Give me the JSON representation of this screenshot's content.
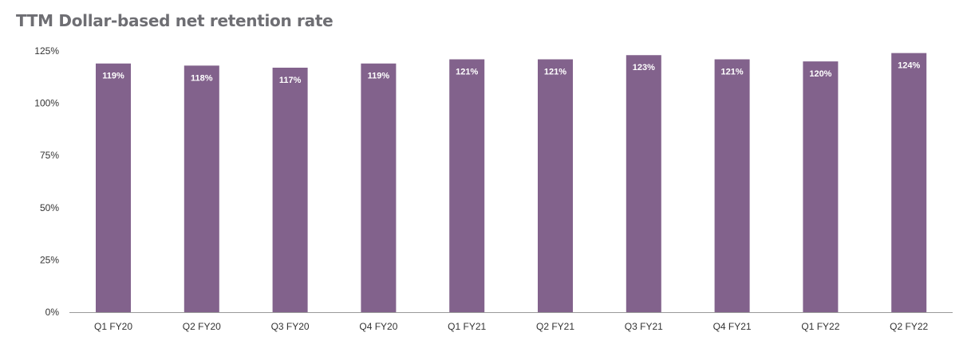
{
  "colors": {
    "bar": "#82628c",
    "axis": "#9a9a9a",
    "title": "#6e6e73",
    "label": "#ffffff"
  },
  "chart_data": {
    "type": "bar",
    "title": "TTM Dollar-based net retention rate",
    "xlabel": "",
    "ylabel": "",
    "categories": [
      "Q1 FY20",
      "Q2 FY20",
      "Q3 FY20",
      "Q4 FY20",
      "Q1 FY21",
      "Q2 FY21",
      "Q3 FY21",
      "Q4 FY21",
      "Q1 FY22",
      "Q2 FY22"
    ],
    "values": [
      119,
      118,
      117,
      119,
      121,
      121,
      123,
      121,
      120,
      124
    ],
    "value_labels": [
      "119%",
      "118%",
      "117%",
      "119%",
      "121%",
      "121%",
      "123%",
      "121%",
      "120%",
      "124%"
    ],
    "ylim": [
      0,
      125
    ],
    "yticks": [
      0,
      25,
      50,
      75,
      100,
      125
    ],
    "ytick_labels": [
      "0%",
      "25%",
      "50%",
      "75%",
      "100%",
      "125%"
    ],
    "grid": false,
    "legend": "none"
  }
}
